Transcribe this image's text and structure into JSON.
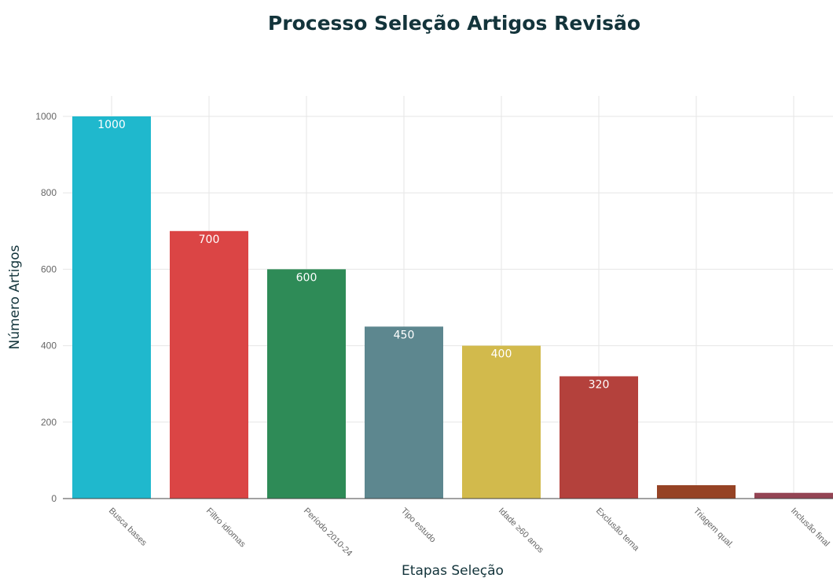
{
  "chart_data": {
    "type": "bar",
    "title": "Processo Seleção Artigos Revisão",
    "xlabel": "Etapas Seleção",
    "ylabel": "Número Artigos",
    "categories": [
      "Busca bases",
      "Filtro idiomas",
      "Período 2010-24",
      "Tipo estudo",
      "Idade ≥60 anos",
      "Exclusão tema",
      "Triagem qual.",
      "Inclusão final"
    ],
    "values": [
      1000,
      700,
      600,
      450,
      400,
      320,
      35,
      15
    ],
    "value_labels": [
      "1000",
      "700",
      "600",
      "450",
      "400",
      "320",
      "",
      ""
    ],
    "colors": [
      "#1fb8cd",
      "#db4545",
      "#2e8b57",
      "#5d878f",
      "#d2ba4c",
      "#b4413c",
      "#964325",
      "#944454"
    ],
    "ylim": [
      0,
      1000
    ],
    "yticks": [
      0,
      200,
      400,
      600,
      800,
      1000
    ],
    "grid": true,
    "legend": "none"
  }
}
